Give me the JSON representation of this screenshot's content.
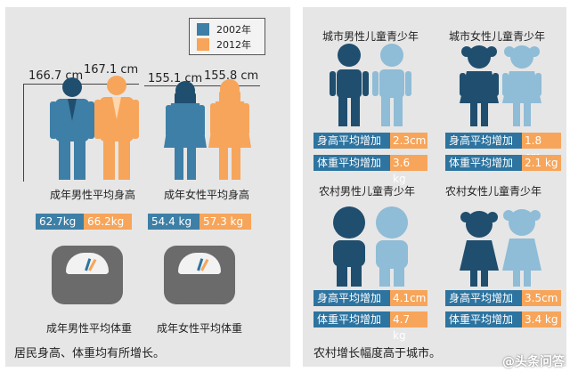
{
  "legend": {
    "items": [
      {
        "label": "2002年",
        "color": "#3d7fa6"
      },
      {
        "label": "2012年",
        "color": "#f7a55a"
      }
    ]
  },
  "adult_height": {
    "male": {
      "v2002": "166.7 cm",
      "v2012": "167.1 cm",
      "caption": "成年男性平均身高"
    },
    "female": {
      "v2002": "155.1 cm",
      "v2012": "155.8 cm",
      "caption": "成年女性平均身高"
    }
  },
  "adult_weight": {
    "male": {
      "v2002": "62.7kg",
      "v2012": "66.2kg",
      "caption": "成年男性平均体重"
    },
    "female": {
      "v2002": "54.4 kg",
      "v2012": "57.3 kg",
      "caption": "成年女性平均体重"
    }
  },
  "left_summary": "居民身高、体重均有所增长。",
  "right": {
    "groups": [
      {
        "title": "城市男性儿童青少年",
        "height_label": "身高平均增加",
        "height_value": "2.3cm",
        "weight_label": "体重平均增加",
        "weight_value": "3.6 kg"
      },
      {
        "title": "城市女性儿童青少年",
        "height_label": "身高平均增加",
        "height_value": "1.8 cm",
        "weight_label": "体重平均增加",
        "weight_value": "2.1 kg"
      },
      {
        "title": "农村男性儿童青少年",
        "height_label": "身高平均增加",
        "height_value": "4.1cm",
        "weight_label": "体重平均增加",
        "weight_value": "4.7 kg"
      },
      {
        "title": "农村女性儿童青少年",
        "height_label": "身高平均增加",
        "height_value": "3.5cm",
        "weight_label": "体重平均增加",
        "weight_value": "3.4 kg"
      }
    ],
    "summary": "农村增长幅度高于城市。"
  },
  "watermark": "@头条问答",
  "colors": {
    "dark_blue": "#1f4e6e",
    "blue": "#3d7fa6",
    "light_blue": "#8fbcd6",
    "orange": "#f7a55a",
    "gray": "#6b6b6b"
  }
}
